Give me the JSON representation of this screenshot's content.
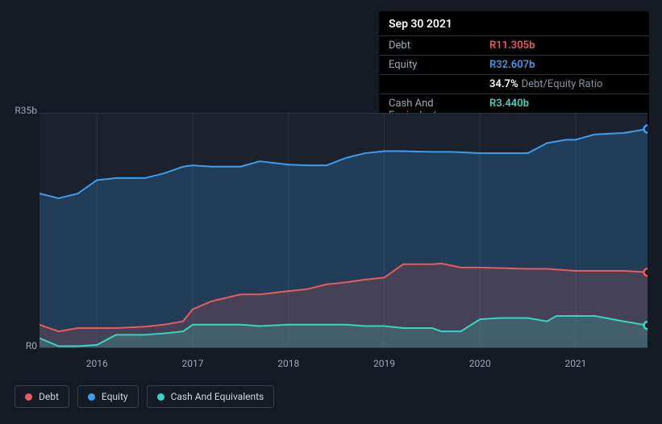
{
  "tooltip": {
    "date": "Sep 30 2021",
    "rows": {
      "debt": {
        "label": "Debt",
        "value": "R11.305b"
      },
      "equity": {
        "label": "Equity",
        "value": "R32.607b"
      },
      "ratio": {
        "label": "",
        "value": "34.7%",
        "suffix": "Debt/Equity Ratio"
      },
      "cash": {
        "label": "Cash And Equivalents",
        "value": "R3.440b"
      }
    }
  },
  "chart": {
    "type": "area",
    "background_color": "#151b24",
    "plot_background_color": "#1b222d",
    "grid_color": "#2a3240",
    "ylim": [
      0,
      35
    ],
    "yticks": [
      {
        "v": 0,
        "label": "R0"
      },
      {
        "v": 35,
        "label": "R35b"
      }
    ],
    "xlim": [
      2015.4,
      2021.75
    ],
    "xticks": [
      {
        "v": 2016,
        "label": "2016"
      },
      {
        "v": 2017,
        "label": "2017"
      },
      {
        "v": 2018,
        "label": "2018"
      },
      {
        "v": 2019,
        "label": "2019"
      },
      {
        "v": 2020,
        "label": "2020"
      },
      {
        "v": 2021,
        "label": "2021"
      }
    ],
    "series": {
      "equity": {
        "label": "Equity",
        "color": "#3b9ef0",
        "fill_opacity": 0.22,
        "line_width": 2,
        "data": [
          [
            2015.4,
            23.0
          ],
          [
            2015.6,
            22.3
          ],
          [
            2015.8,
            23.0
          ],
          [
            2016.0,
            25.0
          ],
          [
            2016.2,
            25.3
          ],
          [
            2016.5,
            25.3
          ],
          [
            2016.7,
            26.0
          ],
          [
            2016.9,
            27.0
          ],
          [
            2017.0,
            27.2
          ],
          [
            2017.2,
            27.0
          ],
          [
            2017.5,
            27.0
          ],
          [
            2017.7,
            27.8
          ],
          [
            2018.0,
            27.3
          ],
          [
            2018.2,
            27.2
          ],
          [
            2018.4,
            27.2
          ],
          [
            2018.6,
            28.3
          ],
          [
            2018.8,
            29.0
          ],
          [
            2019.0,
            29.3
          ],
          [
            2019.2,
            29.3
          ],
          [
            2019.5,
            29.2
          ],
          [
            2019.7,
            29.2
          ],
          [
            2020.0,
            29.0
          ],
          [
            2020.2,
            29.0
          ],
          [
            2020.5,
            29.0
          ],
          [
            2020.7,
            30.5
          ],
          [
            2020.9,
            31.0
          ],
          [
            2021.0,
            31.0
          ],
          [
            2021.2,
            31.8
          ],
          [
            2021.5,
            32.0
          ],
          [
            2021.75,
            32.6
          ]
        ]
      },
      "debt": {
        "label": "Debt",
        "color": "#eb5b5b",
        "fill_opacity": 0.18,
        "line_width": 2,
        "data": [
          [
            2015.4,
            3.5
          ],
          [
            2015.6,
            2.5
          ],
          [
            2015.8,
            3.0
          ],
          [
            2016.0,
            3.0
          ],
          [
            2016.2,
            3.0
          ],
          [
            2016.5,
            3.2
          ],
          [
            2016.7,
            3.5
          ],
          [
            2016.9,
            4.0
          ],
          [
            2017.0,
            5.8
          ],
          [
            2017.2,
            7.0
          ],
          [
            2017.5,
            8.0
          ],
          [
            2017.7,
            8.0
          ],
          [
            2018.0,
            8.5
          ],
          [
            2018.2,
            8.8
          ],
          [
            2018.4,
            9.5
          ],
          [
            2018.6,
            9.8
          ],
          [
            2018.8,
            10.2
          ],
          [
            2019.0,
            10.5
          ],
          [
            2019.2,
            12.5
          ],
          [
            2019.5,
            12.5
          ],
          [
            2019.6,
            12.6
          ],
          [
            2019.8,
            12.0
          ],
          [
            2020.0,
            12.0
          ],
          [
            2020.5,
            11.8
          ],
          [
            2020.7,
            11.8
          ],
          [
            2021.0,
            11.5
          ],
          [
            2021.2,
            11.5
          ],
          [
            2021.5,
            11.5
          ],
          [
            2021.75,
            11.3
          ]
        ]
      },
      "cash": {
        "label": "Cash And Equivalents",
        "color": "#3bd4c3",
        "fill_opacity": 0.2,
        "line_width": 2,
        "data": [
          [
            2015.4,
            1.5
          ],
          [
            2015.6,
            0.3
          ],
          [
            2015.8,
            0.3
          ],
          [
            2016.0,
            0.5
          ],
          [
            2016.2,
            2.0
          ],
          [
            2016.5,
            2.0
          ],
          [
            2016.7,
            2.2
          ],
          [
            2016.9,
            2.5
          ],
          [
            2017.0,
            3.5
          ],
          [
            2017.2,
            3.5
          ],
          [
            2017.5,
            3.5
          ],
          [
            2017.7,
            3.3
          ],
          [
            2018.0,
            3.5
          ],
          [
            2018.2,
            3.5
          ],
          [
            2018.4,
            3.5
          ],
          [
            2018.6,
            3.5
          ],
          [
            2018.8,
            3.3
          ],
          [
            2019.0,
            3.3
          ],
          [
            2019.2,
            3.0
          ],
          [
            2019.5,
            3.0
          ],
          [
            2019.6,
            2.5
          ],
          [
            2019.8,
            2.5
          ],
          [
            2020.0,
            4.3
          ],
          [
            2020.2,
            4.5
          ],
          [
            2020.5,
            4.5
          ],
          [
            2020.7,
            4.0
          ],
          [
            2020.8,
            4.8
          ],
          [
            2021.0,
            4.8
          ],
          [
            2021.2,
            4.8
          ],
          [
            2021.5,
            4.0
          ],
          [
            2021.75,
            3.4
          ]
        ]
      }
    },
    "end_markers": [
      {
        "series": "equity",
        "color": "#3b9ef0"
      },
      {
        "series": "debt",
        "color": "#eb5b5b"
      },
      {
        "series": "cash",
        "color": "#3bd4c3"
      }
    ]
  },
  "legend": [
    {
      "key": "debt",
      "label": "Debt",
      "color": "#eb5b5b"
    },
    {
      "key": "equity",
      "label": "Equity",
      "color": "#3b9ef0"
    },
    {
      "key": "cash",
      "label": "Cash And Equivalents",
      "color": "#3bd4c3"
    }
  ]
}
